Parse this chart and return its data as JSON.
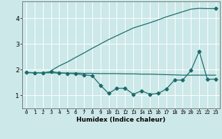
{
  "title": "",
  "xlabel": "Humidex (Indice chaleur)",
  "bg_color": "#cce8e8",
  "line_color": "#1a6b6b",
  "grid_color": "#ffffff",
  "xlim": [
    -0.5,
    23.5
  ],
  "ylim": [
    0.5,
    4.65
  ],
  "yticks": [
    1,
    2,
    3,
    4
  ],
  "xticks": [
    0,
    1,
    2,
    3,
    4,
    5,
    6,
    7,
    8,
    9,
    10,
    11,
    12,
    13,
    14,
    15,
    16,
    17,
    18,
    19,
    20,
    21,
    22,
    23
  ],
  "line1_x": [
    3,
    4,
    5,
    6,
    7,
    8,
    9,
    10,
    11,
    12,
    13,
    14,
    15,
    16,
    17,
    18,
    19,
    20,
    21,
    22,
    23
  ],
  "line1_y": [
    1.96,
    2.15,
    2.3,
    2.48,
    2.65,
    2.83,
    3.0,
    3.17,
    3.32,
    3.47,
    3.62,
    3.72,
    3.82,
    3.93,
    4.05,
    4.15,
    4.25,
    4.35,
    4.38,
    4.37,
    4.37
  ],
  "line2_x": [
    0,
    1,
    2,
    3,
    4,
    5,
    6,
    7,
    8,
    9,
    10,
    11,
    12,
    13,
    14,
    15,
    16,
    17,
    18,
    19,
    20,
    21,
    22,
    23
  ],
  "line2_y": [
    1.88,
    1.88,
    1.88,
    1.88,
    1.87,
    1.87,
    1.87,
    1.86,
    1.86,
    1.85,
    1.85,
    1.85,
    1.84,
    1.84,
    1.83,
    1.83,
    1.82,
    1.81,
    1.8,
    1.79,
    1.79,
    1.79,
    1.79,
    1.79
  ],
  "line3_x": [
    0,
    1,
    2,
    3,
    4,
    5,
    6,
    7,
    8,
    9,
    10,
    11,
    12,
    13,
    14,
    15,
    16,
    17,
    18,
    19,
    20,
    21,
    22,
    23
  ],
  "line3_y": [
    1.9,
    1.88,
    1.88,
    1.93,
    1.88,
    1.86,
    1.84,
    1.8,
    1.77,
    1.4,
    1.08,
    1.28,
    1.28,
    1.05,
    1.18,
    1.05,
    1.08,
    1.25,
    1.6,
    1.6,
    1.97,
    2.72,
    1.62,
    1.64
  ],
  "marker": "D",
  "markersize": 2.5,
  "linewidth": 0.9
}
